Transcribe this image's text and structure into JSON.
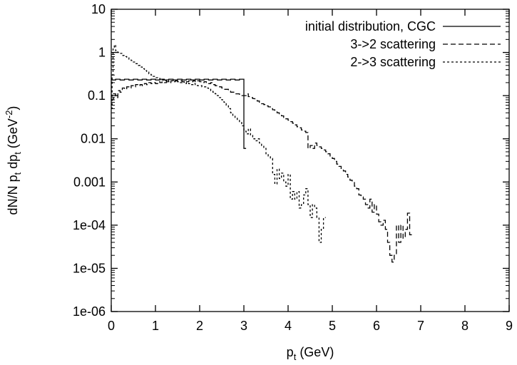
{
  "chart_data": {
    "type": "line",
    "title": "",
    "xlabel": {
      "main": "p",
      "sub": "t",
      "rest": " (GeV)"
    },
    "ylabel": {
      "parts": [
        {
          "t": "dN/N p",
          "s": "n"
        },
        {
          "t": "t",
          "s": "sub"
        },
        {
          "t": " dp",
          "s": "n"
        },
        {
          "t": "t",
          "s": "sub"
        },
        {
          "t": " (GeV",
          "s": "n"
        },
        {
          "t": "-2",
          "s": "sup"
        },
        {
          "t": ")",
          "s": "n"
        }
      ]
    },
    "x_ticks": [
      {
        "value": 0,
        "label": "0"
      },
      {
        "value": 1,
        "label": "1"
      },
      {
        "value": 2,
        "label": "2"
      },
      {
        "value": 3,
        "label": "3"
      },
      {
        "value": 4,
        "label": "4"
      },
      {
        "value": 5,
        "label": "5"
      },
      {
        "value": 6,
        "label": "6"
      },
      {
        "value": 7,
        "label": "7"
      },
      {
        "value": 8,
        "label": "8"
      },
      {
        "value": 9,
        "label": "9"
      }
    ],
    "y_ticks": [
      {
        "value": 1e-06,
        "label": "1e-06"
      },
      {
        "value": 1e-05,
        "label": "1e-05"
      },
      {
        "value": 0.0001,
        "label": "1e-04"
      },
      {
        "value": 0.001,
        "label": "0.001"
      },
      {
        "value": 0.01,
        "label": "0.01"
      },
      {
        "value": 0.1,
        "label": "0.1"
      },
      {
        "value": 1,
        "label": "1"
      },
      {
        "value": 10,
        "label": "10"
      }
    ],
    "xlim": [
      0,
      9
    ],
    "ylim": [
      1e-06,
      10
    ],
    "yscale": "log",
    "grid": false,
    "legend_position": "top-right",
    "series": [
      {
        "name": "initial distribution, CGC",
        "style": "solid",
        "steps": [
          [
            0.0,
            0.23
          ],
          [
            0.1,
            0.24
          ],
          [
            0.2,
            0.23
          ],
          [
            0.3,
            0.24
          ],
          [
            0.4,
            0.23
          ],
          [
            0.5,
            0.24
          ],
          [
            0.6,
            0.23
          ],
          [
            0.7,
            0.24
          ],
          [
            0.8,
            0.23
          ],
          [
            0.9,
            0.24
          ],
          [
            1.0,
            0.23
          ],
          [
            1.1,
            0.24
          ],
          [
            1.2,
            0.23
          ],
          [
            1.3,
            0.24
          ],
          [
            1.4,
            0.23
          ],
          [
            1.5,
            0.24
          ],
          [
            1.6,
            0.23
          ],
          [
            1.7,
            0.24
          ],
          [
            1.8,
            0.23
          ],
          [
            1.9,
            0.24
          ],
          [
            2.0,
            0.23
          ],
          [
            2.1,
            0.24
          ],
          [
            2.2,
            0.23
          ],
          [
            2.3,
            0.24
          ],
          [
            2.4,
            0.23
          ],
          [
            2.5,
            0.24
          ],
          [
            2.6,
            0.23
          ],
          [
            2.7,
            0.24
          ],
          [
            2.8,
            0.23
          ],
          [
            2.9,
            0.24
          ],
          [
            3.0,
            0.006
          ]
        ]
      },
      {
        "name": "3->2 scattering",
        "style": "dashed",
        "steps": [
          [
            0.0,
            0.08
          ],
          [
            0.05,
            0.11
          ],
          [
            0.1,
            0.09
          ],
          [
            0.15,
            0.13
          ],
          [
            0.2,
            0.12
          ],
          [
            0.25,
            0.15
          ],
          [
            0.3,
            0.14
          ],
          [
            0.35,
            0.16
          ],
          [
            0.4,
            0.15
          ],
          [
            0.45,
            0.17
          ],
          [
            0.5,
            0.16
          ],
          [
            0.55,
            0.18
          ],
          [
            0.6,
            0.17
          ],
          [
            0.65,
            0.18
          ],
          [
            0.7,
            0.17
          ],
          [
            0.75,
            0.19
          ],
          [
            0.8,
            0.18
          ],
          [
            0.85,
            0.2
          ],
          [
            0.9,
            0.19
          ],
          [
            0.95,
            0.2
          ],
          [
            1.0,
            0.19
          ],
          [
            1.05,
            0.21
          ],
          [
            1.1,
            0.2
          ],
          [
            1.15,
            0.21
          ],
          [
            1.2,
            0.2
          ],
          [
            1.25,
            0.21
          ],
          [
            1.3,
            0.2
          ],
          [
            1.35,
            0.22
          ],
          [
            1.4,
            0.21
          ],
          [
            1.45,
            0.22
          ],
          [
            1.5,
            0.21
          ],
          [
            1.55,
            0.22
          ],
          [
            1.6,
            0.21
          ],
          [
            1.65,
            0.22
          ],
          [
            1.7,
            0.21
          ],
          [
            1.75,
            0.22
          ],
          [
            1.8,
            0.21
          ],
          [
            1.85,
            0.22
          ],
          [
            1.9,
            0.21
          ],
          [
            1.95,
            0.22
          ],
          [
            2.0,
            0.21
          ],
          [
            2.05,
            0.2
          ],
          [
            2.1,
            0.21
          ],
          [
            2.15,
            0.2
          ],
          [
            2.2,
            0.19
          ],
          [
            2.25,
            0.2
          ],
          [
            2.3,
            0.18
          ],
          [
            2.35,
            0.17
          ],
          [
            2.4,
            0.17
          ],
          [
            2.45,
            0.16
          ],
          [
            2.5,
            0.15
          ],
          [
            2.55,
            0.14
          ],
          [
            2.6,
            0.14
          ],
          [
            2.65,
            0.13
          ],
          [
            2.7,
            0.12
          ],
          [
            2.75,
            0.12
          ],
          [
            2.8,
            0.11
          ],
          [
            2.85,
            0.11
          ],
          [
            2.9,
            0.1
          ],
          [
            2.95,
            0.1
          ],
          [
            3.0,
            0.1
          ],
          [
            3.05,
            0.11
          ],
          [
            3.1,
            0.095
          ],
          [
            3.15,
            0.09
          ],
          [
            3.2,
            0.085
          ],
          [
            3.25,
            0.08
          ],
          [
            3.3,
            0.075
          ],
          [
            3.35,
            0.07
          ],
          [
            3.4,
            0.065
          ],
          [
            3.45,
            0.062
          ],
          [
            3.5,
            0.058
          ],
          [
            3.55,
            0.055
          ],
          [
            3.6,
            0.05
          ],
          [
            3.65,
            0.047
          ],
          [
            3.7,
            0.044
          ],
          [
            3.75,
            0.04
          ],
          [
            3.8,
            0.037
          ],
          [
            3.85,
            0.034
          ],
          [
            3.9,
            0.031
          ],
          [
            3.95,
            0.029
          ],
          [
            4.0,
            0.027
          ],
          [
            4.05,
            0.025
          ],
          [
            4.1,
            0.023
          ],
          [
            4.15,
            0.021
          ],
          [
            4.2,
            0.019
          ],
          [
            4.25,
            0.018
          ],
          [
            4.3,
            0.016
          ],
          [
            4.35,
            0.015
          ],
          [
            4.4,
            0.014
          ],
          [
            4.45,
            0.006
          ],
          [
            4.5,
            0.007
          ],
          [
            4.55,
            0.006
          ],
          [
            4.6,
            0.008
          ],
          [
            4.65,
            0.007
          ],
          [
            4.7,
            0.0065
          ],
          [
            4.75,
            0.006
          ],
          [
            4.8,
            0.0055
          ],
          [
            4.85,
            0.005
          ],
          [
            4.9,
            0.0045
          ],
          [
            4.95,
            0.004
          ],
          [
            5.0,
            0.0035
          ],
          [
            5.05,
            0.003
          ],
          [
            5.1,
            0.0026
          ],
          [
            5.15,
            0.0023
          ],
          [
            5.2,
            0.002
          ],
          [
            5.25,
            0.0018
          ],
          [
            5.3,
            0.0015
          ],
          [
            5.35,
            0.0013
          ],
          [
            5.4,
            0.0011
          ],
          [
            5.45,
            0.001
          ],
          [
            5.5,
            0.0008
          ],
          [
            5.55,
            0.0007
          ],
          [
            5.6,
            0.0005
          ],
          [
            5.65,
            0.00045
          ],
          [
            5.7,
            0.0004
          ],
          [
            5.75,
            0.0003
          ],
          [
            5.8,
            0.00025
          ],
          [
            5.85,
            0.0004
          ],
          [
            5.9,
            0.0002
          ],
          [
            5.95,
            0.0003
          ],
          [
            6.0,
            0.00018
          ],
          [
            6.05,
            0.00012
          ],
          [
            6.1,
            0.0001
          ],
          [
            6.15,
            0.00013
          ],
          [
            6.2,
            8e-05
          ],
          [
            6.25,
            4e-05
          ],
          [
            6.3,
            2e-05
          ],
          [
            6.35,
            1.4e-05
          ],
          [
            6.4,
            2e-05
          ],
          [
            6.45,
            0.0001
          ],
          [
            6.5,
            4e-05
          ],
          [
            6.55,
            0.0001
          ],
          [
            6.6,
            5e-05
          ],
          [
            6.65,
            8e-05
          ],
          [
            6.7,
            0.00019
          ],
          [
            6.75,
            6e-05
          ]
        ]
      },
      {
        "name": "2->3 scattering",
        "style": "dotted",
        "steps": [
          [
            0.0,
            0.05
          ],
          [
            0.02,
            0.3
          ],
          [
            0.04,
            1.2
          ],
          [
            0.07,
            1.5
          ],
          [
            0.1,
            1.1
          ],
          [
            0.15,
            1.0
          ],
          [
            0.2,
            0.95
          ],
          [
            0.25,
            0.85
          ],
          [
            0.3,
            0.8
          ],
          [
            0.35,
            0.75
          ],
          [
            0.4,
            0.7
          ],
          [
            0.45,
            0.65
          ],
          [
            0.5,
            0.6
          ],
          [
            0.55,
            0.55
          ],
          [
            0.6,
            0.5
          ],
          [
            0.65,
            0.46
          ],
          [
            0.7,
            0.42
          ],
          [
            0.75,
            0.38
          ],
          [
            0.8,
            0.35
          ],
          [
            0.85,
            0.32
          ],
          [
            0.9,
            0.3
          ],
          [
            0.95,
            0.28
          ],
          [
            1.0,
            0.26
          ],
          [
            1.05,
            0.25
          ],
          [
            1.1,
            0.24
          ],
          [
            1.15,
            0.23
          ],
          [
            1.2,
            0.22
          ],
          [
            1.25,
            0.23
          ],
          [
            1.3,
            0.21
          ],
          [
            1.35,
            0.22
          ],
          [
            1.4,
            0.21
          ],
          [
            1.45,
            0.22
          ],
          [
            1.5,
            0.21
          ],
          [
            1.55,
            0.2
          ],
          [
            1.6,
            0.21
          ],
          [
            1.65,
            0.19
          ],
          [
            1.7,
            0.2
          ],
          [
            1.75,
            0.19
          ],
          [
            1.8,
            0.18
          ],
          [
            1.85,
            0.19
          ],
          [
            1.9,
            0.18
          ],
          [
            1.95,
            0.17
          ],
          [
            2.0,
            0.17
          ],
          [
            2.05,
            0.16
          ],
          [
            2.1,
            0.16
          ],
          [
            2.15,
            0.15
          ],
          [
            2.2,
            0.14
          ],
          [
            2.25,
            0.13
          ],
          [
            2.3,
            0.12
          ],
          [
            2.35,
            0.11
          ],
          [
            2.4,
            0.1
          ],
          [
            2.45,
            0.09
          ],
          [
            2.5,
            0.08
          ],
          [
            2.55,
            0.07
          ],
          [
            2.6,
            0.06
          ],
          [
            2.65,
            0.05
          ],
          [
            2.7,
            0.04
          ],
          [
            2.75,
            0.035
          ],
          [
            2.8,
            0.03
          ],
          [
            2.85,
            0.028
          ],
          [
            2.9,
            0.025
          ],
          [
            2.95,
            0.02
          ],
          [
            3.0,
            0.015
          ],
          [
            3.05,
            0.013
          ],
          [
            3.1,
            0.017
          ],
          [
            3.15,
            0.012
          ],
          [
            3.2,
            0.01
          ],
          [
            3.25,
            0.009
          ],
          [
            3.3,
            0.01
          ],
          [
            3.35,
            0.008
          ],
          [
            3.4,
            0.007
          ],
          [
            3.45,
            0.006
          ],
          [
            3.5,
            0.0045
          ],
          [
            3.55,
            0.004
          ],
          [
            3.6,
            0.0035
          ],
          [
            3.65,
            0.0015
          ],
          [
            3.7,
            0.0009
          ],
          [
            3.75,
            0.002
          ],
          [
            3.8,
            0.0012
          ],
          [
            3.85,
            0.0016
          ],
          [
            3.9,
            0.001
          ],
          [
            3.95,
            0.0008
          ],
          [
            4.0,
            0.0015
          ],
          [
            4.05,
            0.0004
          ],
          [
            4.1,
            0.0006
          ],
          [
            4.15,
            0.0004
          ],
          [
            4.2,
            0.0006
          ],
          [
            4.25,
            0.00025
          ],
          [
            4.3,
            0.0003
          ],
          [
            4.35,
            0.0005
          ],
          [
            4.4,
            0.0007
          ],
          [
            4.45,
            0.0003
          ],
          [
            4.5,
            0.00015
          ],
          [
            4.55,
            0.0003
          ],
          [
            4.6,
            0.00025
          ],
          [
            4.65,
            0.00015
          ],
          [
            4.7,
            4e-05
          ],
          [
            4.75,
            8e-05
          ],
          [
            4.8,
            0.00015
          ]
        ]
      }
    ]
  }
}
